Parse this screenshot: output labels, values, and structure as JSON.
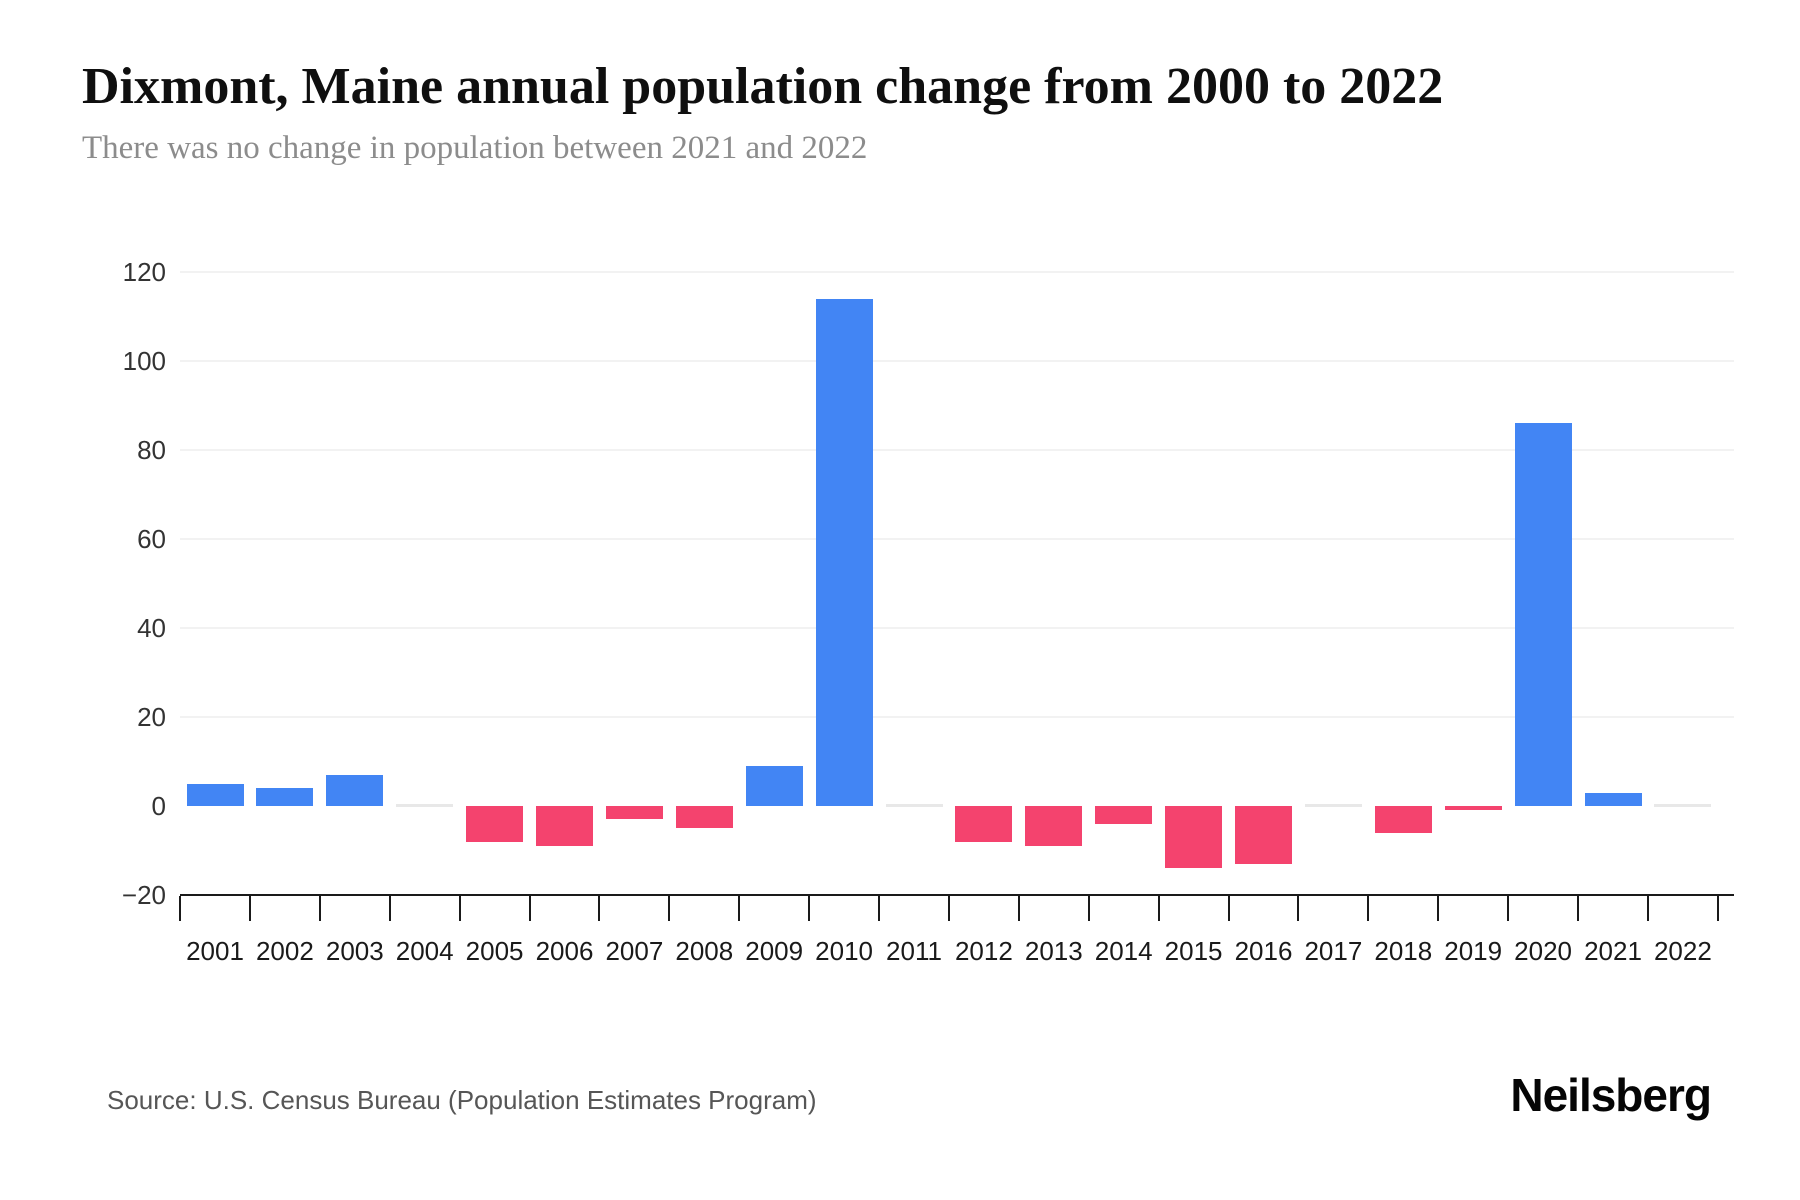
{
  "page": {
    "title": "Dixmont, Maine annual population change from 2000 to 2022",
    "subtitle": "There was no change in population between 2021 and 2022",
    "source": "Source: U.S. Census Bureau (Population Estimates Program)",
    "brand": "Neilsberg"
  },
  "chart_data": {
    "type": "bar",
    "title": "Dixmont, Maine annual population change from 2000 to 2022",
    "subtitle": "There was no change in population between 2021 and 2022",
    "categories": [
      "2001",
      "2002",
      "2003",
      "2004",
      "2005",
      "2006",
      "2007",
      "2008",
      "2009",
      "2010",
      "2011",
      "2012",
      "2013",
      "2014",
      "2015",
      "2016",
      "2017",
      "2018",
      "2019",
      "2020",
      "2021",
      "2022"
    ],
    "values": [
      5,
      4,
      7,
      0,
      -8,
      -9,
      -3,
      -5,
      9,
      114,
      0,
      -8,
      -9,
      -4,
      -14,
      -13,
      0,
      -6,
      -1,
      86,
      3,
      0
    ],
    "xlabel": "",
    "ylabel": "",
    "ylim": [
      -20,
      120
    ],
    "yticks": [
      120,
      100,
      80,
      60,
      40,
      20,
      0,
      -20
    ],
    "grid": "horizontal-light",
    "legend": "none",
    "colors": {
      "positive": "#4285f4",
      "negative": "#f4436e",
      "zero_marker": "#e8e8e8",
      "gridline": "#f2f2f2",
      "axis": "#1a1a1a"
    },
    "source": "Source: U.S. Census Bureau (Population Estimates Program)",
    "brand": "Neilsberg"
  }
}
